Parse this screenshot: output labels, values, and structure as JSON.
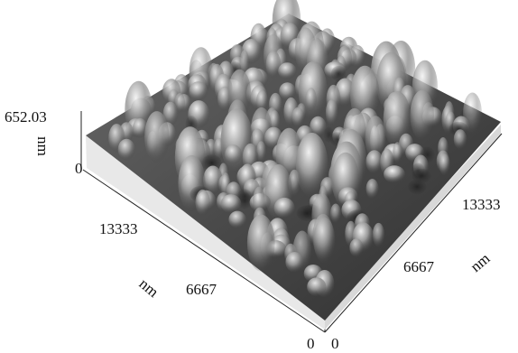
{
  "z_axis": {
    "max": "652.03",
    "min": "0",
    "unit": "nm"
  },
  "left_axis": {
    "origin": "0",
    "ticks": [
      "13333",
      "6667"
    ],
    "unit": "nm"
  },
  "right_axis": {
    "origin": "0",
    "ticks": [
      "13333",
      "6667"
    ],
    "unit": "nm"
  }
}
